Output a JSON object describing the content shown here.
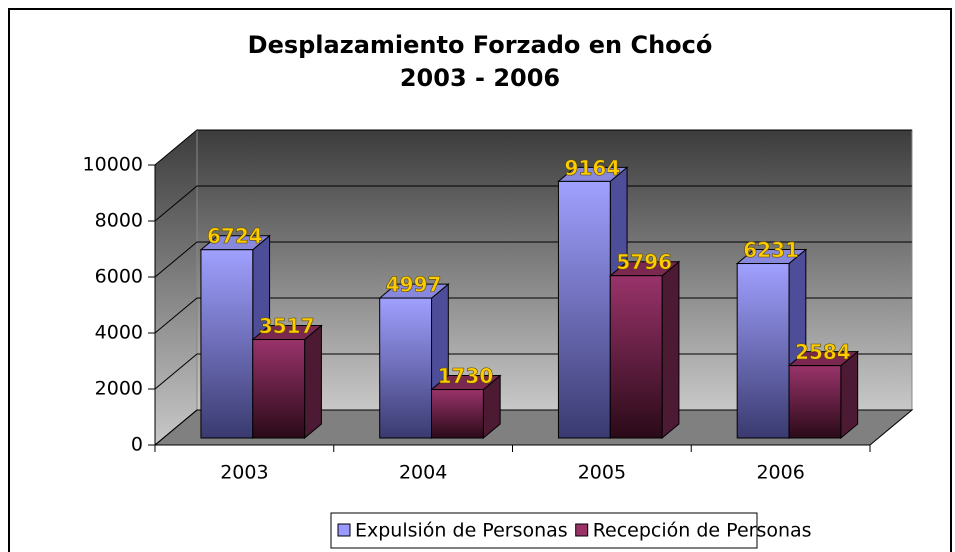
{
  "chart_data": {
    "type": "bar3d",
    "title": "Desplazamiento Forzado en Chocó",
    "subtitle": "2003 - 2006",
    "categories": [
      "2003",
      "2004",
      "2005",
      "2006"
    ],
    "series": [
      {
        "name": "Expulsión de Personas",
        "color": "#9999ff",
        "values": [
          6724,
          4997,
          9164,
          6231
        ]
      },
      {
        "name": "Recepción de Personas",
        "color": "#993366",
        "values": [
          3517,
          1730,
          5796,
          2584
        ]
      }
    ],
    "ylim": [
      0,
      10000
    ],
    "yticks": [
      0,
      2000,
      4000,
      6000,
      8000,
      10000
    ],
    "grid": true,
    "legend": "bottom"
  }
}
